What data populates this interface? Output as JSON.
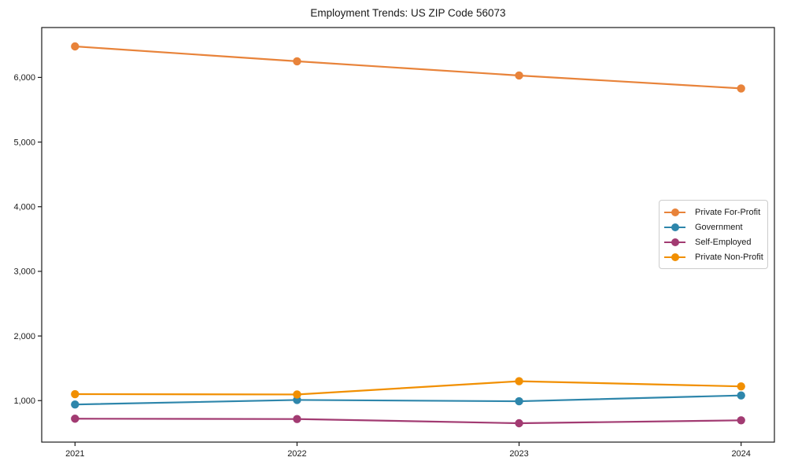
{
  "figure": {
    "title": "Employment Trends: US ZIP Code 56073"
  },
  "chart_data": {
    "type": "line",
    "title": "Employment Trends: US ZIP Code 56073",
    "categories": [
      "2021",
      "2022",
      "2023",
      "2024"
    ],
    "x": [
      2021,
      2022,
      2023,
      2024
    ],
    "series": [
      {
        "name": "Private For-Profit",
        "color": "#E8833A",
        "values": [
          6480,
          6250,
          6030,
          5830
        ]
      },
      {
        "name": "Government",
        "color": "#2E86AB",
        "values": [
          940,
          1010,
          990,
          1080
        ]
      },
      {
        "name": "Self-Employed",
        "color": "#A23B72",
        "values": [
          720,
          715,
          650,
          695
        ]
      },
      {
        "name": "Private Non-Profit",
        "color": "#F18F01",
        "values": [
          1100,
          1095,
          1300,
          1220
        ]
      }
    ],
    "xlabel": "",
    "ylabel": "",
    "xlim": [
      2020.85,
      2024.15
    ],
    "ylim": [
      358,
      6772
    ],
    "y_ticks": [
      1000,
      2000,
      3000,
      4000,
      5000,
      6000
    ],
    "y_tick_labels": [
      "1,000",
      "2,000",
      "3,000",
      "4,000",
      "5,000",
      "6,000"
    ],
    "grid": false,
    "legend_position": "center-right",
    "axis_color": "#1a1a1a",
    "background_color": "#ffffff"
  }
}
